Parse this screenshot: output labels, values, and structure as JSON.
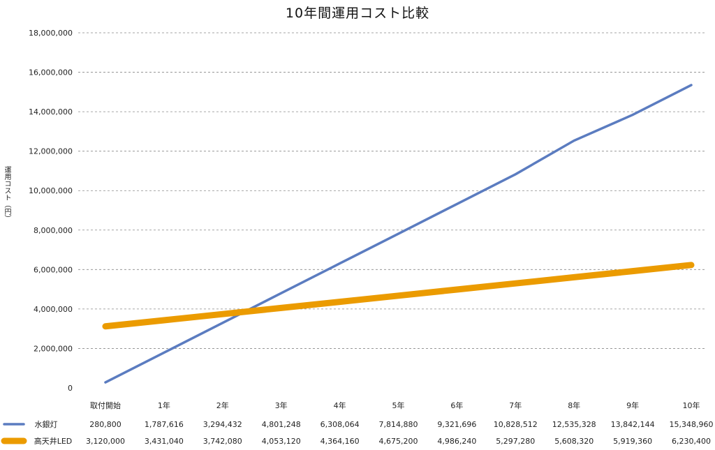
{
  "chart_data": {
    "type": "line",
    "title": "10年間運用コスト比較",
    "ylabel": "運用コスト（円）",
    "xlabel": "",
    "categories": [
      "取付開始",
      "1年",
      "2年",
      "3年",
      "4年",
      "5年",
      "6年",
      "7年",
      "8年",
      "9年",
      "10年"
    ],
    "ylim": [
      0,
      18000000
    ],
    "yticks": [
      "0",
      "2,000,000",
      "4,000,000",
      "6,000,000",
      "8,000,000",
      "10,000,000",
      "12,000,000",
      "14,000,000",
      "16,000,000",
      "18,000,000"
    ],
    "grid": "horizontal dashed",
    "legend": "data table below chart",
    "series": [
      {
        "name": "水銀灯",
        "color": "#5b7cc0",
        "values": [
          280800,
          1787616,
          3294432,
          4801248,
          6308064,
          7814880,
          9321696,
          10828512,
          12535328,
          13842144,
          15348960
        ],
        "labels": [
          "280,800",
          "1,787,616",
          "3,294,432",
          "4,801,248",
          "6,308,064",
          "7,814,880",
          "9,321,696",
          "10,828,512",
          "12,535,328",
          "13,842,144",
          "15,348,960"
        ]
      },
      {
        "name": "高天井LED",
        "color": "#eb9b00",
        "values": [
          3120000,
          3431040,
          3742080,
          4053120,
          4364160,
          4675200,
          4986240,
          5297280,
          5608320,
          5919360,
          6230400
        ],
        "labels": [
          "3,120,000",
          "3,431,040",
          "3,742,080",
          "4,053,120",
          "4,364,160",
          "4,675,200",
          "4,986,240",
          "5,297,280",
          "5,608,320",
          "5,919,360",
          "6,230,400"
        ]
      }
    ]
  }
}
